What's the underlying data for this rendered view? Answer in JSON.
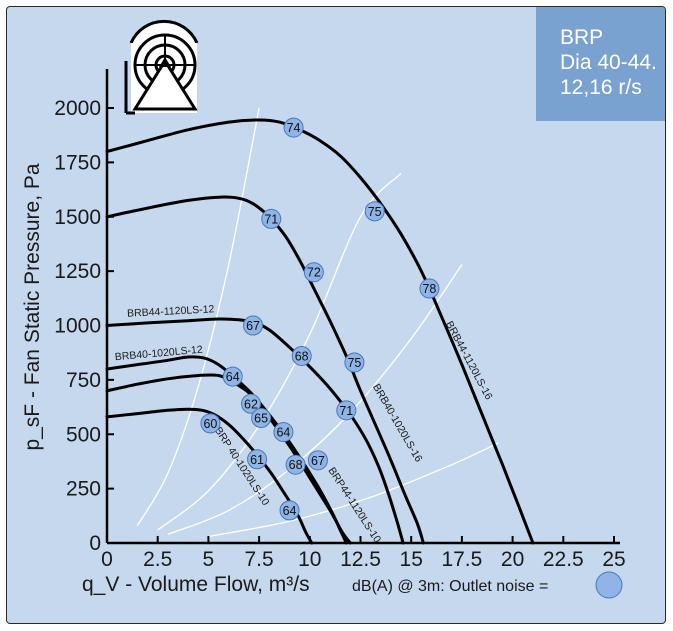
{
  "badge": {
    "line1": "BRP",
    "line2": "Dia 40-44.",
    "line3": "12,16 r/s"
  },
  "legend": {
    "text": "dB(A) @ 3m:  Outlet noise  =",
    "marker_color": "#8fb4e6"
  },
  "colors": {
    "background": "#c5d8ee",
    "curve": "#000000",
    "system_line": "#ffffff",
    "marker": "#8fb4e6"
  },
  "icon": "fan-housing-icon",
  "chart_data": {
    "type": "line",
    "xlabel": "q_V - Volume Flow, m³/s",
    "ylabel": "p_sF - Fan Static Pressure, Pa",
    "xlim": [
      0,
      25
    ],
    "ylim": [
      0,
      2000
    ],
    "xticks": [
      "0",
      "2.5",
      "5",
      "7.5",
      "10",
      "12.5",
      "15",
      "17.5",
      "20",
      "22.5",
      "25"
    ],
    "yticks": [
      "0",
      "250",
      "500",
      "750",
      "1000",
      "1250",
      "1500",
      "1750",
      "2000"
    ],
    "grid": false,
    "series": [
      {
        "name": "BRB44-1120LS-16",
        "points": [
          [
            0,
            1800
          ],
          [
            2,
            1850
          ],
          [
            4,
            1900
          ],
          [
            6,
            1935
          ],
          [
            7.5,
            1945
          ],
          [
            8.5,
            1935
          ],
          [
            9.5,
            1900
          ],
          [
            10.5,
            1850
          ],
          [
            11.5,
            1780
          ],
          [
            12.5,
            1680
          ],
          [
            13.5,
            1560
          ],
          [
            14.5,
            1420
          ],
          [
            15.5,
            1250
          ],
          [
            16.5,
            1040
          ],
          [
            17.5,
            820
          ],
          [
            18.5,
            590
          ],
          [
            19.5,
            360
          ],
          [
            20.3,
            170
          ],
          [
            21,
            0
          ]
        ],
        "markers": [
          {
            "x": 9.2,
            "y": 1910,
            "label": "74"
          },
          {
            "x": 13.2,
            "y": 1525,
            "label": "75"
          },
          {
            "x": 15.9,
            "y": 1170,
            "label": "78"
          }
        ]
      },
      {
        "name": "",
        "points": [
          [
            0,
            1500
          ],
          [
            2,
            1540
          ],
          [
            4,
            1575
          ],
          [
            5.5,
            1590
          ],
          [
            6.5,
            1585
          ],
          [
            7.2,
            1560
          ],
          [
            8,
            1500
          ],
          [
            8.8,
            1410
          ],
          [
            9.5,
            1300
          ],
          [
            10.2,
            1170
          ],
          [
            11,
            1020
          ],
          [
            11.8,
            860
          ],
          [
            12.5,
            700
          ],
          [
            13.3,
            530
          ],
          [
            14,
            380
          ],
          [
            14.7,
            220
          ],
          [
            15.3,
            90
          ],
          [
            15.6,
            0
          ]
        ],
        "markers": [
          {
            "x": 8.1,
            "y": 1490,
            "label": "71"
          },
          {
            "x": 10.2,
            "y": 1245,
            "label": "72"
          },
          {
            "x": 12.2,
            "y": 830,
            "label": "75"
          }
        ]
      },
      {
        "name": "BRB44-1120LS-12",
        "points": [
          [
            0,
            1000
          ],
          [
            2,
            1012
          ],
          [
            4,
            1022
          ],
          [
            5.5,
            1030
          ],
          [
            6.5,
            1026
          ],
          [
            7.3,
            1012
          ],
          [
            8,
            980
          ],
          [
            9,
            900
          ],
          [
            10,
            810
          ],
          [
            11,
            710
          ],
          [
            12,
            590
          ],
          [
            12.8,
            470
          ],
          [
            13.4,
            350
          ],
          [
            13.9,
            220
          ],
          [
            14.3,
            100
          ],
          [
            14.6,
            0
          ]
        ],
        "markers": [
          {
            "x": 7.2,
            "y": 1000,
            "label": "67"
          },
          {
            "x": 9.6,
            "y": 860,
            "label": "68"
          },
          {
            "x": 11.8,
            "y": 610,
            "label": "71"
          }
        ]
      },
      {
        "name": "BRB40-1020LS-12",
        "points": [
          [
            0,
            800
          ],
          [
            1.5,
            820
          ],
          [
            3,
            840
          ],
          [
            4,
            855
          ],
          [
            4.8,
            850
          ],
          [
            5.5,
            820
          ],
          [
            6.3,
            760
          ],
          [
            7.2,
            680
          ],
          [
            8,
            590
          ],
          [
            8.8,
            490
          ],
          [
            9.6,
            380
          ],
          [
            10.4,
            260
          ],
          [
            11.1,
            140
          ],
          [
            11.5,
            60
          ],
          [
            11.8,
            0
          ]
        ],
        "markers": [
          {
            "x": 6.2,
            "y": 765,
            "label": "64"
          },
          {
            "x": 8.7,
            "y": 510,
            "label": "64"
          },
          {
            "x": 10.4,
            "y": 380,
            "label": "67"
          }
        ]
      },
      {
        "name": "",
        "points": [
          [
            0,
            700
          ],
          [
            1.5,
            730
          ],
          [
            3,
            755
          ],
          [
            4.5,
            770
          ],
          [
            5.5,
            770
          ],
          [
            6.2,
            740
          ],
          [
            7,
            690
          ],
          [
            7.8,
            600
          ],
          [
            8.6,
            500
          ],
          [
            9.4,
            390
          ],
          [
            10.2,
            270
          ],
          [
            11,
            150
          ],
          [
            11.6,
            50
          ],
          [
            12,
            0
          ]
        ],
        "markers": [
          {
            "x": 7.1,
            "y": 640,
            "label": "62"
          },
          {
            "x": 9.3,
            "y": 360,
            "label": "68"
          }
        ]
      },
      {
        "name": "",
        "points": [
          [
            0,
            580
          ],
          [
            1.5,
            595
          ],
          [
            3,
            610
          ],
          [
            4,
            615
          ],
          [
            4.7,
            610
          ],
          [
            5.3,
            590
          ],
          [
            6,
            545
          ],
          [
            6.7,
            480
          ],
          [
            7.4,
            405
          ],
          [
            8.1,
            320
          ],
          [
            8.8,
            220
          ],
          [
            9.4,
            130
          ],
          [
            9.8,
            50
          ],
          [
            10.1,
            0
          ]
        ],
        "markers": [
          {
            "x": 5.1,
            "y": 550,
            "label": "60"
          },
          {
            "x": 7.6,
            "y": 575,
            "label": "65"
          },
          {
            "x": 7.4,
            "y": 385,
            "label": "61"
          },
          {
            "x": 9,
            "y": 150,
            "label": "64"
          }
        ]
      }
    ],
    "curve_labels": [
      {
        "text": "BRB44-1120LS-12",
        "x": 1,
        "y": 1040,
        "angle": -3
      },
      {
        "text": "BRB40-1020LS-12",
        "x": 0.4,
        "y": 840,
        "angle": -5
      },
      {
        "text": "BRP 40-1020LS-10",
        "x": 5.3,
        "y": 520,
        "angle": 57
      },
      {
        "text": "BRB40-1020LS-16",
        "x": 13.1,
        "y": 720,
        "angle": 60
      },
      {
        "text": "BRP44-1120LS-10",
        "x": 10.9,
        "y": 335,
        "angle": 57
      },
      {
        "text": "BRB44-1120LS-16",
        "x": 16.7,
        "y": 1010,
        "angle": 62
      }
    ],
    "system_curves": [
      {
        "points": [
          [
            1.5,
            80
          ],
          [
            3,
            320
          ],
          [
            4.5,
            720
          ],
          [
            6,
            1280
          ],
          [
            7.5,
            2000
          ]
        ]
      },
      {
        "points": [
          [
            2.5,
            60
          ],
          [
            5,
            240
          ],
          [
            7.5,
            540
          ],
          [
            10,
            960
          ],
          [
            12.5,
            1500
          ],
          [
            14.5,
            1700
          ]
        ]
      },
      {
        "points": [
          [
            3,
            40
          ],
          [
            6,
            150
          ],
          [
            9,
            340
          ],
          [
            12,
            600
          ],
          [
            15,
            940
          ],
          [
            17.5,
            1280
          ]
        ]
      },
      {
        "points": [
          [
            5,
            30
          ],
          [
            9,
            100
          ],
          [
            13,
            210
          ],
          [
            17,
            360
          ],
          [
            19.3,
            460
          ]
        ]
      }
    ]
  }
}
